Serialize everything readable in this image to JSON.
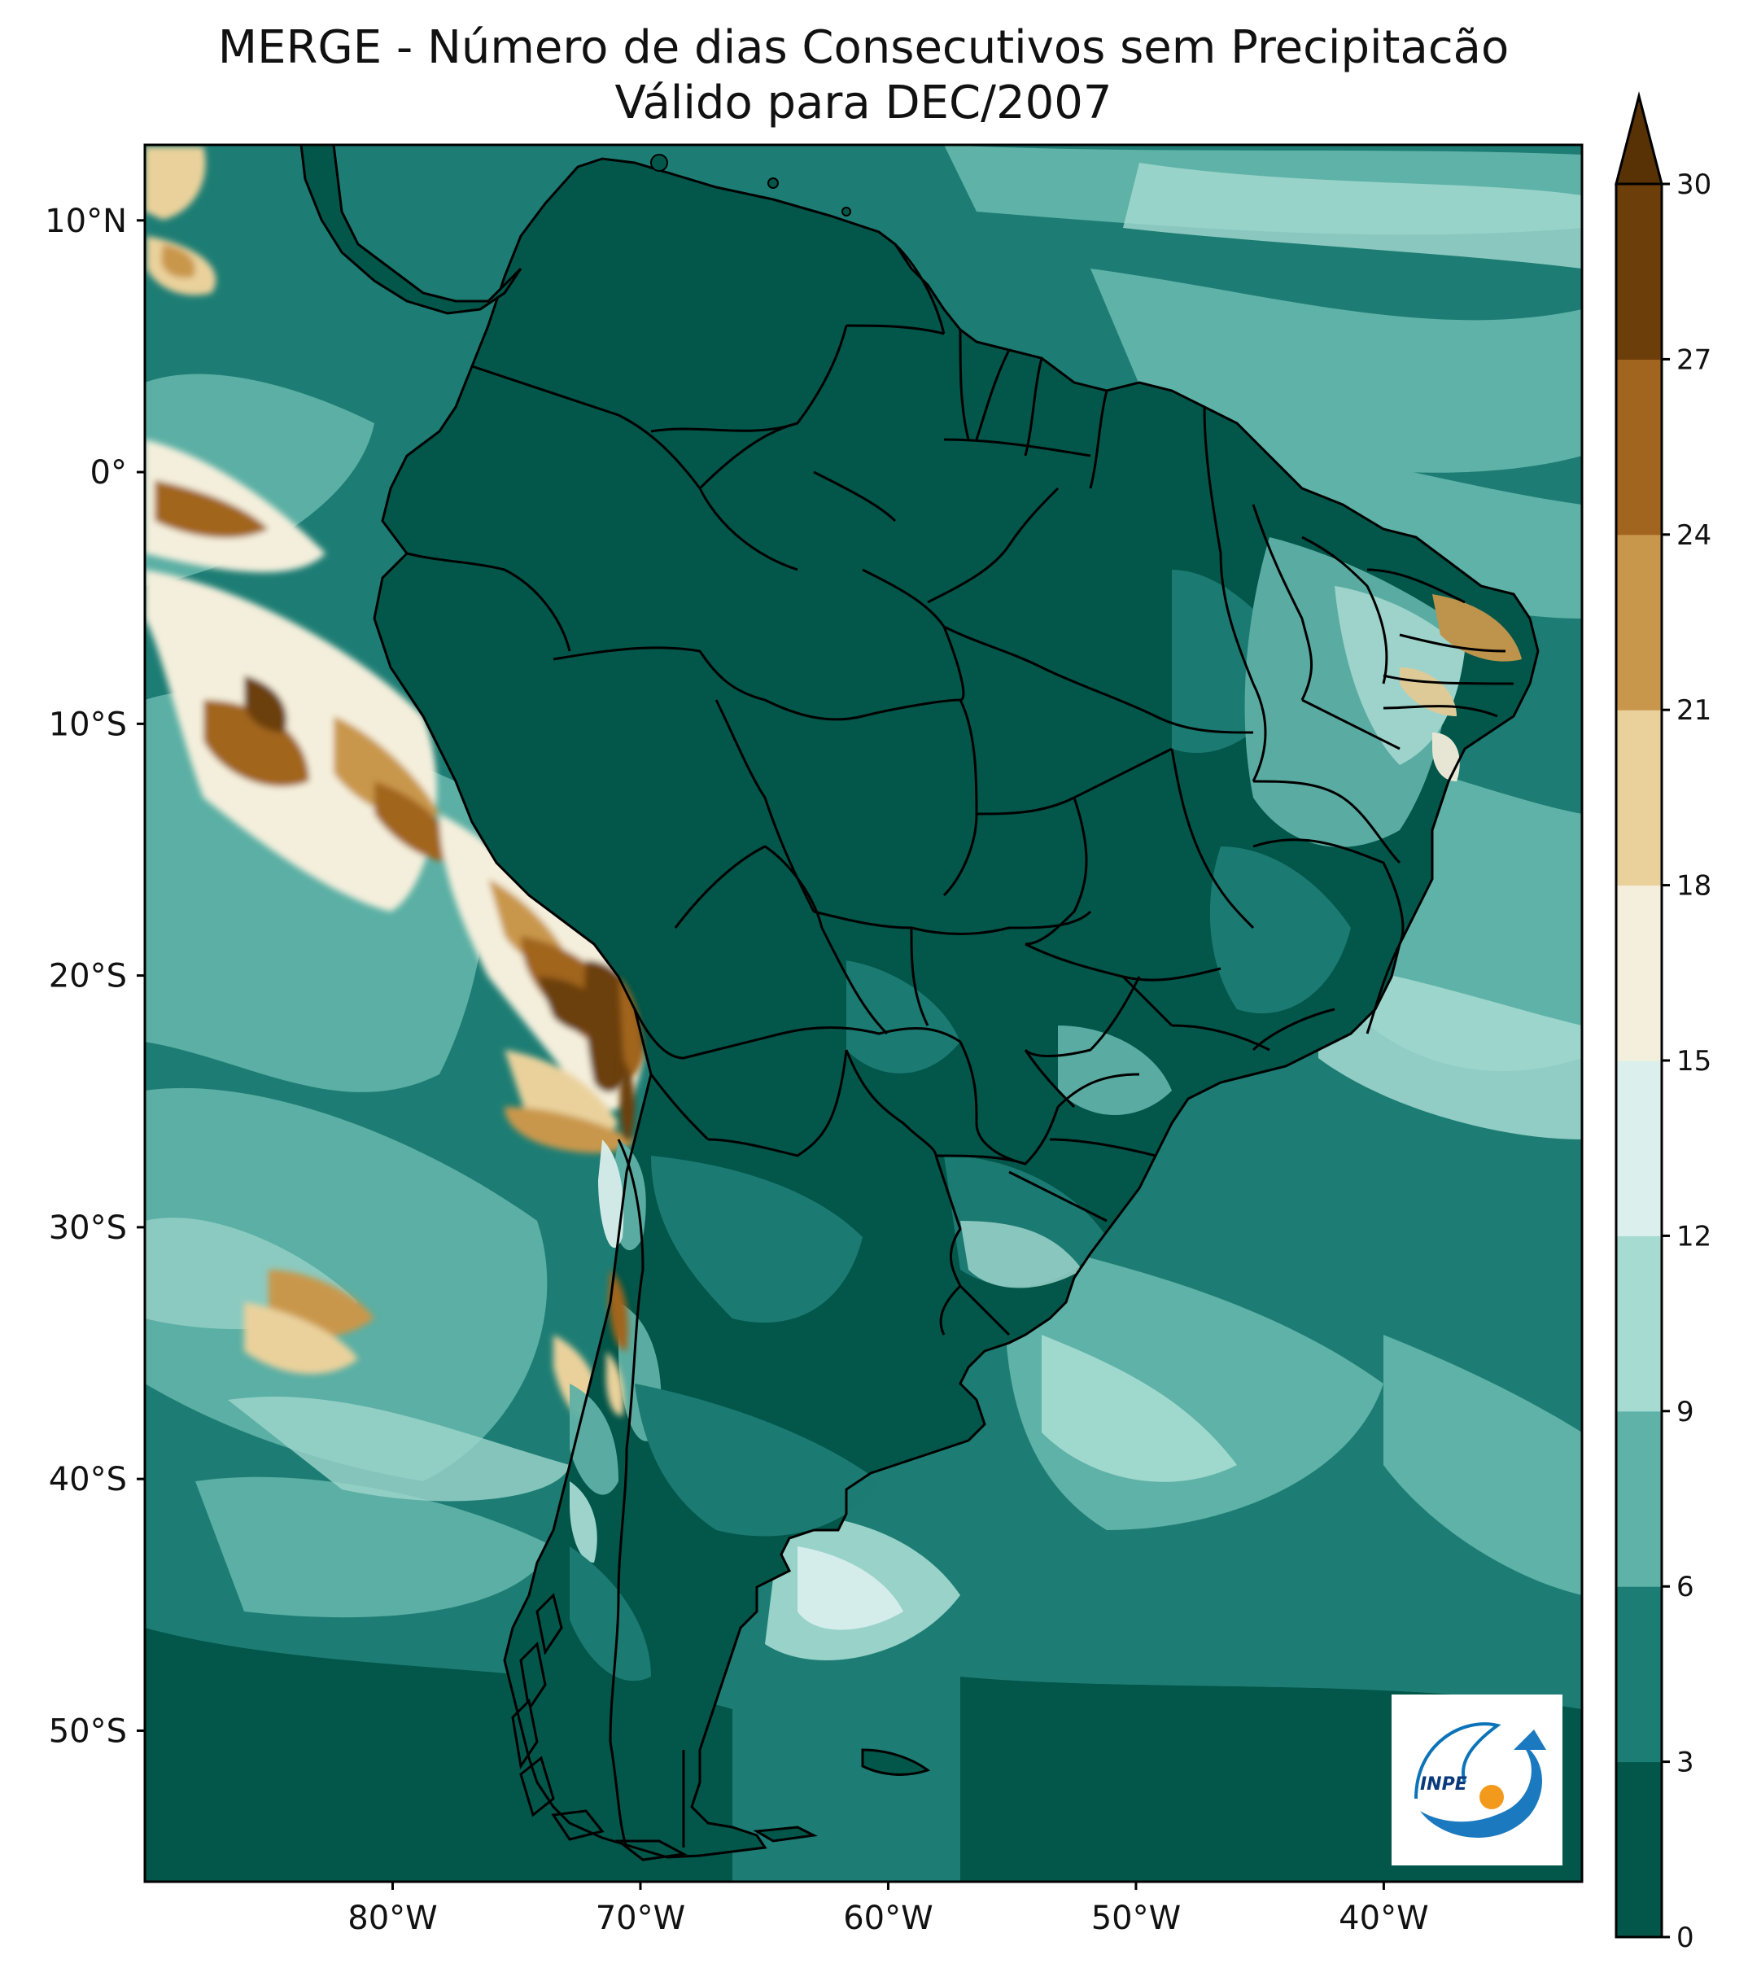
{
  "title": {
    "line1": "MERGE - Número de dias Consecutivos sem Precipitacão",
    "line2": "Válido para DEC/2007"
  },
  "map": {
    "lon_range": [
      -90,
      -32
    ],
    "lat_range": [
      -56,
      13
    ],
    "lat_ticks": [
      {
        "value": 10,
        "label": "10°N"
      },
      {
        "value": 0,
        "label": "0°"
      },
      {
        "value": -10,
        "label": "10°S"
      },
      {
        "value": -20,
        "label": "20°S"
      },
      {
        "value": -30,
        "label": "30°S"
      },
      {
        "value": -40,
        "label": "40°S"
      },
      {
        "value": -50,
        "label": "50°S"
      }
    ],
    "lon_ticks": [
      {
        "value": -80,
        "label": "80°W"
      },
      {
        "value": -70,
        "label": "70°W"
      },
      {
        "value": -60,
        "label": "60°W"
      },
      {
        "value": -50,
        "label": "50°W"
      },
      {
        "value": -40,
        "label": "40°W"
      }
    ],
    "fill_colors": {
      "ocean_main": "#1d7d74",
      "land": "#02564a",
      "boundary": "#000000"
    }
  },
  "colorbar": {
    "levels": [
      0,
      3,
      6,
      9,
      12,
      15,
      18,
      21,
      24,
      27,
      30
    ],
    "labels": [
      "0",
      "3",
      "6",
      "9",
      "12",
      "15",
      "18",
      "21",
      "24",
      "27",
      "30"
    ],
    "colors": [
      "#02564a",
      "#1b7d74",
      "#5fb2a7",
      "#a6dbd2",
      "#dbf0ed",
      "#f4efdc",
      "#ead19b",
      "#c9974c",
      "#a1651f",
      "#6c3f0a"
    ],
    "extend_color": "#583205",
    "extend": "max"
  },
  "logo": {
    "text": "INPE"
  }
}
